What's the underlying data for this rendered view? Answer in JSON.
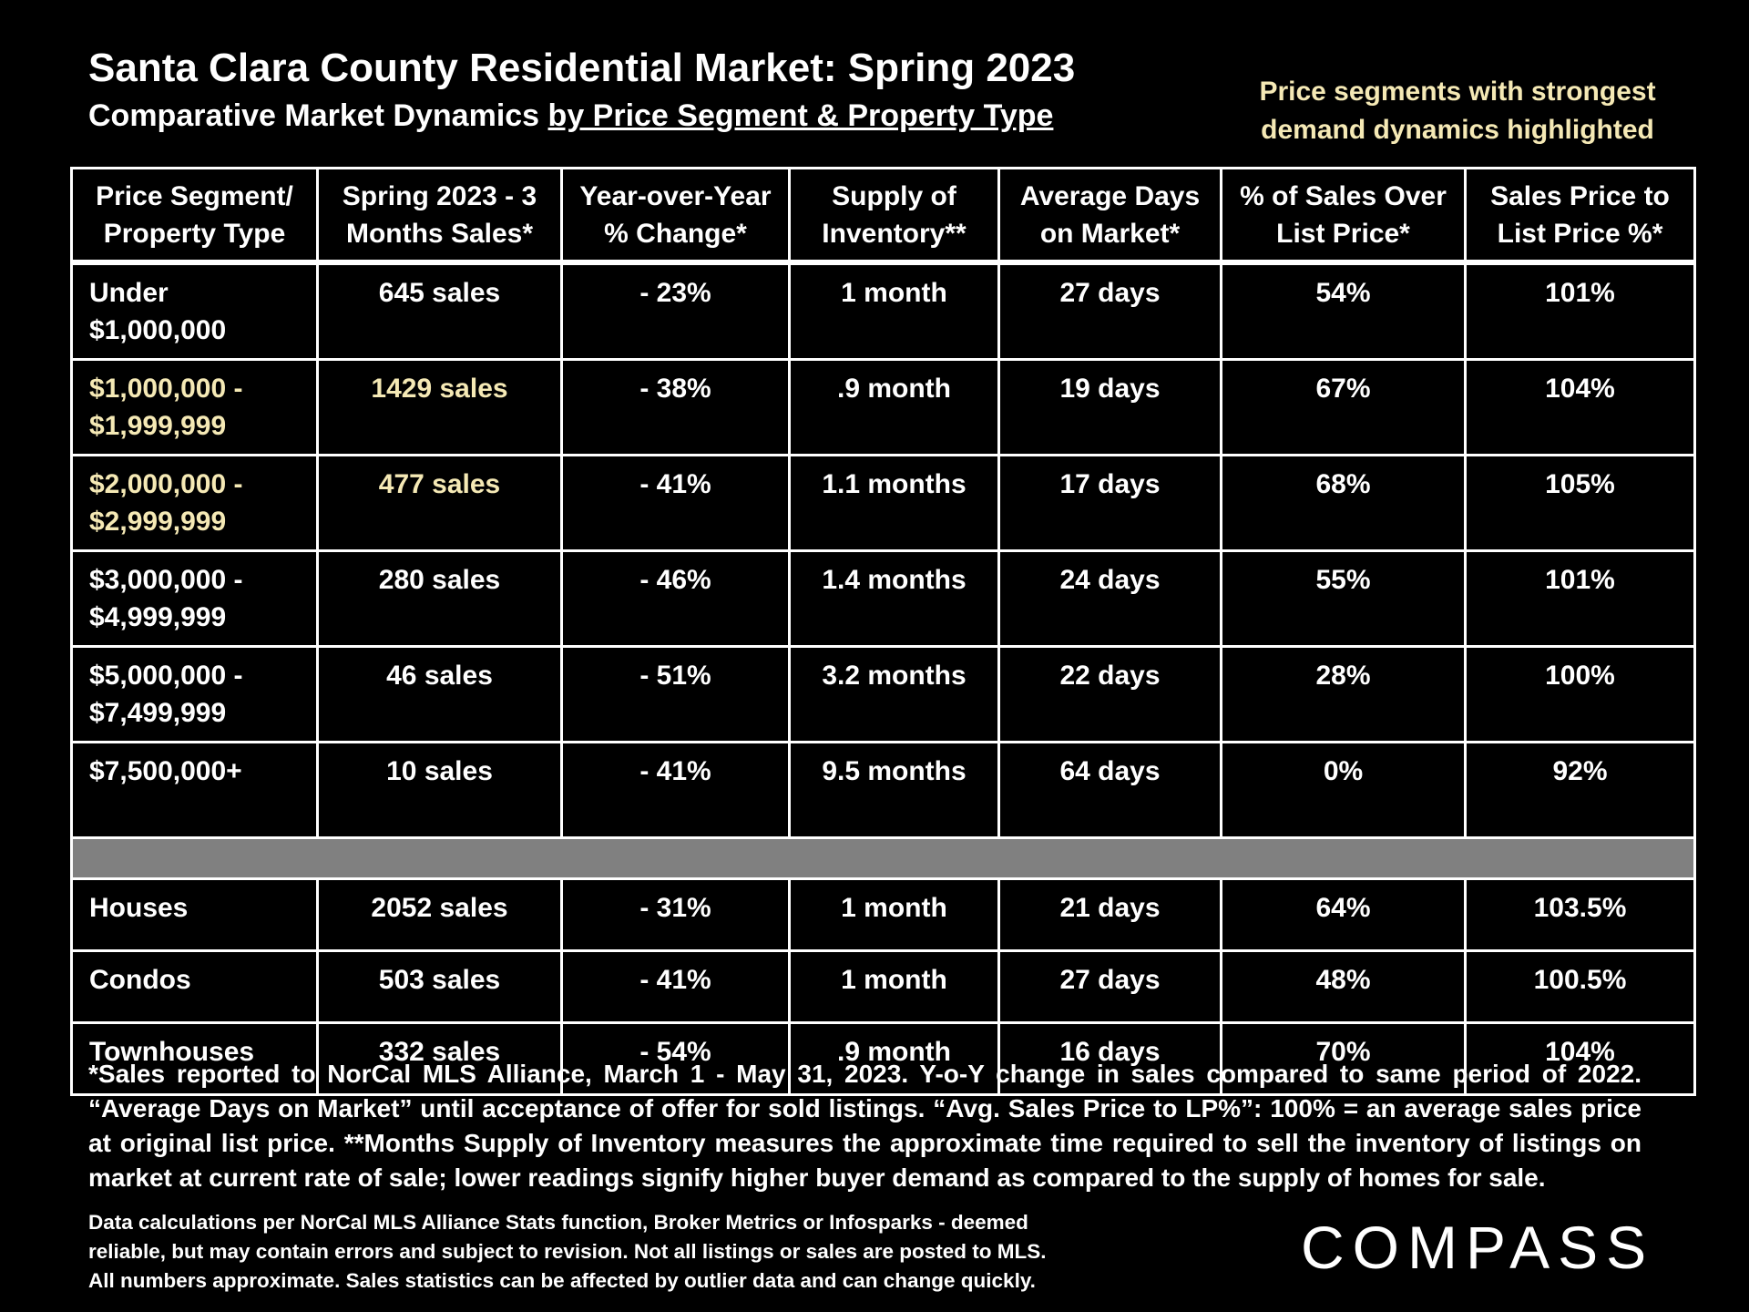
{
  "title": "Santa Clara County Residential Market:  Spring 2023",
  "subtitle": {
    "prefix": "Comparative Market Dynamics ",
    "underlined": "by Price Segment & Property Type"
  },
  "highlight_note": {
    "line1": "Price segments with strongest",
    "line2": "demand dynamics highlighted",
    "color": "#f5e9b5"
  },
  "table": {
    "headers": [
      [
        "Price Segment/",
        "Property Type"
      ],
      [
        "Spring 2023 - 3",
        "Months Sales*"
      ],
      [
        "Year-over-Year",
        "% Change*"
      ],
      [
        "Supply of",
        "Inventory**"
      ],
      [
        "Average Days",
        "on Market*"
      ],
      [
        "% of Sales Over",
        "List Price*"
      ],
      [
        "Sales Price to",
        "List Price %*"
      ]
    ],
    "segments": [
      {
        "label1": "Under",
        "label2": "$1,000,000",
        "sales": "645 sales",
        "yoy": "- 23%",
        "supply": "1 month",
        "dom": "27 days",
        "over": "54%",
        "sp_lp": "101%",
        "highlighted": false
      },
      {
        "label1": "$1,000,000 -",
        "label2": "$1,999,999",
        "sales": "1429 sales",
        "yoy": "- 38%",
        "supply": ".9 month",
        "dom": "19 days",
        "over": "67%",
        "sp_lp": "104%",
        "highlighted": true
      },
      {
        "label1": "$2,000,000 -",
        "label2": "$2,999,999",
        "sales": "477 sales",
        "yoy": "- 41%",
        "supply": "1.1 months",
        "dom": "17 days",
        "over": "68%",
        "sp_lp": "105%",
        "highlighted": true
      },
      {
        "label1": "$3,000,000 -",
        "label2": "$4,999,999",
        "sales": "280 sales",
        "yoy": "- 46%",
        "supply": "1.4 months",
        "dom": "24 days",
        "over": "55%",
        "sp_lp": "101%",
        "highlighted": false
      },
      {
        "label1": "$5,000,000 -",
        "label2": "$7,499,999",
        "sales": "46 sales",
        "yoy": "- 51%",
        "supply": "3.2 months",
        "dom": "22 days",
        "over": "28%",
        "sp_lp": "100%",
        "highlighted": false
      },
      {
        "label1": "$7,500,000+",
        "label2": "",
        "sales": "10 sales",
        "yoy": "- 41%",
        "supply": "9.5 months",
        "dom": "64 days",
        "over": "0%",
        "sp_lp": "92%",
        "highlighted": false
      }
    ],
    "types": [
      {
        "label": "Houses",
        "sales": "2052 sales",
        "yoy": "- 31%",
        "supply": "1 month",
        "dom": "21 days",
        "over": "64%",
        "sp_lp": "103.5%"
      },
      {
        "label": "Condos",
        "sales": "503 sales",
        "yoy": "- 41%",
        "supply": "1 month",
        "dom": "27 days",
        "over": "48%",
        "sp_lp": "100.5%"
      },
      {
        "label": "Townhouses",
        "sales": "332 sales",
        "yoy": "- 54%",
        "supply": ".9 month",
        "dom": "16 days",
        "over": "70%",
        "sp_lp": "104%"
      }
    ]
  },
  "footnote": "*Sales reported to NorCal MLS Alliance, March 1 - May 31, 2023. Y-o-Y change in sales compared to same period of 2022. “Average Days on Market” until acceptance of offer for sold listings. “Avg. Sales Price to LP%”: 100% = an average sales price at original list price. **Months Supply of Inventory measures the approximate time required to sell the inventory of listings on market at current rate of sale; lower readings signify higher buyer demand as compared to the supply of homes for sale.",
  "disclaimer": {
    "line1": "Data calculations per NorCal MLS Alliance Stats function, Broker Metrics or Infosparks - deemed",
    "line2": "reliable, but may contain errors and subject to revision.  Not all listings or sales are posted to MLS.",
    "line3": "All numbers approximate. Sales statistics can be affected by outlier data and can change quickly."
  },
  "logo": "COMPASS"
}
